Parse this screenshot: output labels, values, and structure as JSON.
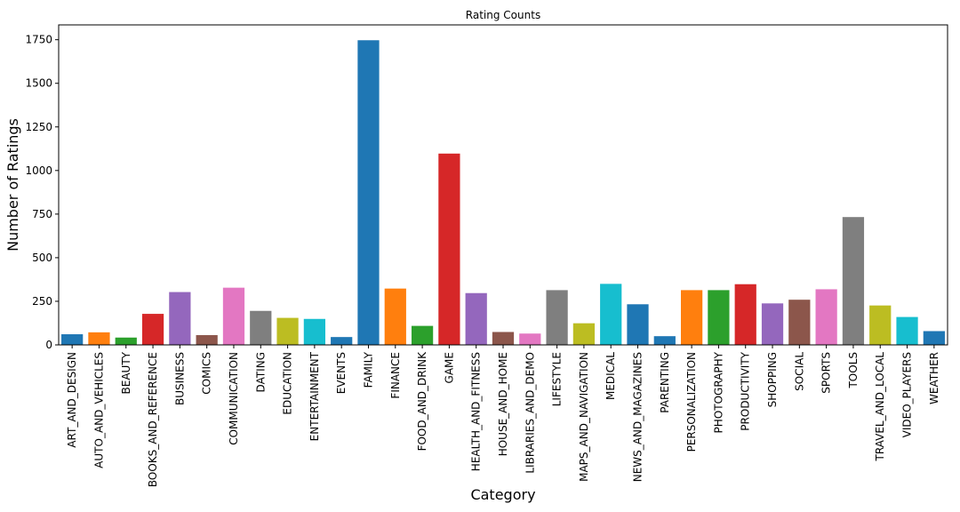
{
  "chart_data": {
    "type": "bar",
    "title": "Rating Counts",
    "xlabel": "Category",
    "ylabel": "Number of Ratings",
    "ylim": [
      0,
      1835
    ],
    "yticks": [
      0,
      250,
      500,
      750,
      1000,
      1250,
      1500,
      1750
    ],
    "grid": false,
    "categories": [
      "ART_AND_DESIGN",
      "AUTO_AND_VEHICLES",
      "BEAUTY",
      "BOOKS_AND_REFERENCE",
      "BUSINESS",
      "COMICS",
      "COMMUNICATION",
      "DATING",
      "EDUCATION",
      "ENTERTAINMENT",
      "EVENTS",
      "FAMILY",
      "FINANCE",
      "FOOD_AND_DRINK",
      "GAME",
      "HEALTH_AND_FITNESS",
      "HOUSE_AND_HOME",
      "LIBRARIES_AND_DEMO",
      "LIFESTYLE",
      "MAPS_AND_NAVIGATION",
      "MEDICAL",
      "NEWS_AND_MAGAZINES",
      "PARENTING",
      "PERSONALIZATION",
      "PHOTOGRAPHY",
      "PRODUCTIVITY",
      "SHOPPING",
      "SOCIAL",
      "SPORTS",
      "TOOLS",
      "TRAVEL_AND_LOCAL",
      "VIDEO_PLAYERS",
      "WEATHER"
    ],
    "values": [
      61,
      72,
      42,
      178,
      303,
      56,
      328,
      195,
      155,
      149,
      45,
      1747,
      323,
      109,
      1097,
      297,
      74,
      65,
      314,
      124,
      350,
      233,
      50,
      314,
      314,
      348,
      238,
      259,
      319,
      733,
      226,
      160,
      79
    ],
    "colors": [
      "#1f77b4",
      "#ff7f0e",
      "#2ca02c",
      "#d62728",
      "#9467bd",
      "#8c564b",
      "#e377c2",
      "#7f7f7f",
      "#bcbd22",
      "#17becf",
      "#1f77b4",
      "#1f77b4",
      "#ff7f0e",
      "#2ca02c",
      "#d62728",
      "#9467bd",
      "#8c564b",
      "#e377c2",
      "#7f7f7f",
      "#bcbd22",
      "#17becf",
      "#1f77b4",
      "#1f77b4",
      "#ff7f0e",
      "#2ca02c",
      "#d62728",
      "#9467bd",
      "#8c564b",
      "#e377c2",
      "#7f7f7f",
      "#bcbd22",
      "#17becf",
      "#1f77b4"
    ]
  }
}
